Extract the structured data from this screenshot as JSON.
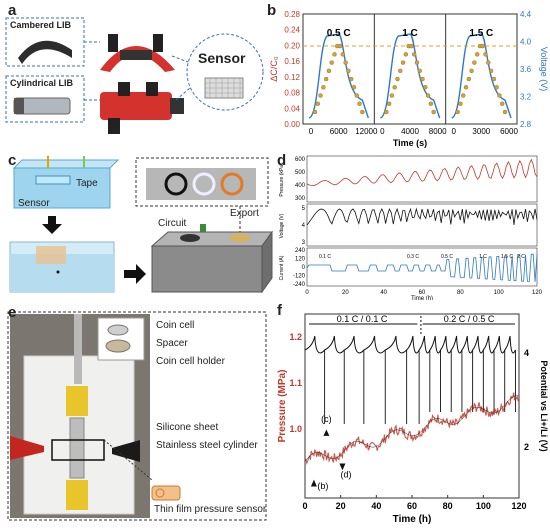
{
  "panel_letters": {
    "a": "a",
    "b": "b",
    "c": "c",
    "d": "d",
    "e": "e",
    "f": "f"
  },
  "panel_a": {
    "cambered": "Cambered LIB",
    "cylindrical": "Cylindrical LIB",
    "sensor": "Sensor"
  },
  "panel_b": {
    "chart_data": {
      "type": "line",
      "xlabel": "Time (s)",
      "ylabel_left": "ΔC/C₀",
      "ylabel_right": "Voltage (V)",
      "left_ticks": [
        "0.00",
        "0.04",
        "0.08",
        "0.12",
        "0.16",
        "0.20",
        "0.24",
        "0.28"
      ],
      "right_ticks": [
        "2.8",
        "3.2",
        "3.6",
        "4.0",
        "4.4"
      ],
      "rates": [
        "0.5 C",
        "1 C",
        "1.5 C"
      ],
      "segments": [
        {
          "x_ticks": [
            "0",
            "6000",
            "12000"
          ],
          "xlim": [
            0,
            14000
          ]
        },
        {
          "x_ticks": [
            "0",
            "4000",
            "8000"
          ],
          "xlim": [
            0,
            9000
          ]
        },
        {
          "x_ticks": [
            "0",
            "3000",
            "6000"
          ],
          "xlim": [
            0,
            6500
          ]
        }
      ],
      "colors": {
        "voltage": "#2e78c7",
        "capacitance": "#d4a23a",
        "axis_left": "#c0392b",
        "axis_right": "#2e78c7"
      }
    }
  },
  "panel_c": {
    "tape": "Tape",
    "sensor": "Sensor",
    "circuit": "Circuit",
    "export": "Export"
  },
  "panel_d": {
    "ylabel_pressure": "Pressure (kPa)",
    "ylabel_voltage": "Voltage (V)",
    "ylabel_current": "Current (A)",
    "xlabel": "Time (h)",
    "pressure_ticks": [
      "300",
      "400",
      "500",
      "600"
    ],
    "voltage_ticks": [
      "3",
      "4",
      "5"
    ],
    "current_ticks": [
      "240",
      "120",
      "0",
      "-120",
      "-240"
    ],
    "x_ticks": [
      "0",
      "20",
      "40",
      "60",
      "80",
      "100",
      "120"
    ],
    "rates": [
      "0.1 C",
      "0.3 C",
      "0.5 C",
      "1 C",
      "1.5 C",
      "2 C"
    ]
  },
  "panel_e": {
    "coin_cell": "Coin cell",
    "spacer": "Spacer",
    "coin_cell_holder": "Coin cell holder",
    "silicone": "Silicone sheet",
    "stainless": "Stainless steel cylinder",
    "thin_film": "Thin film pressure sensor"
  },
  "panel_f": {
    "chart_data": {
      "type": "line",
      "xlabel": "Time (h)",
      "ylabel_left": "Pressure (MPa)",
      "ylabel_right": "Potential vs Li+/Li (V)",
      "x_ticks": [
        "0",
        "20",
        "40",
        "60",
        "80",
        "100",
        "120"
      ],
      "left_ticks": [
        "1.0",
        "1.1",
        "1.2"
      ],
      "right_ticks": [
        "2",
        "4"
      ],
      "xlim": [
        0,
        120
      ],
      "ylim_left": [
        0.85,
        1.25
      ],
      "rate_left": "0.1 C / 0.1 C",
      "rate_right": "0.2 C / 0.5 C",
      "markers": [
        "(b)",
        "(c)",
        "(d)"
      ],
      "colors": {
        "pressure": "#c0392b",
        "potential": "#111111",
        "pressure_smooth": "#222222"
      }
    }
  }
}
